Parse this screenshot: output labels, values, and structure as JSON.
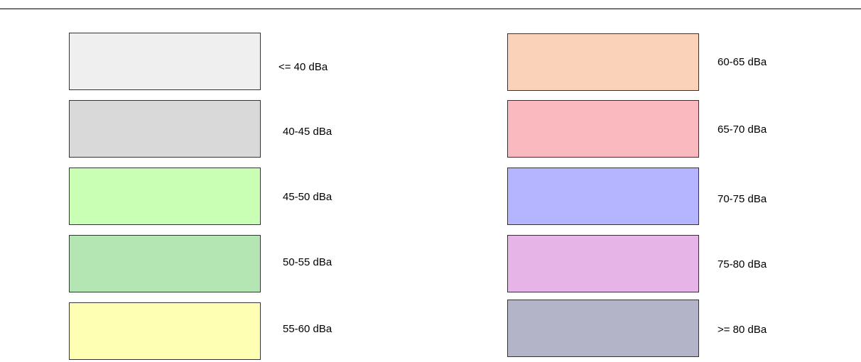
{
  "legend": {
    "items": [
      {
        "label": "<= 40 dBa",
        "color": "#efefef"
      },
      {
        "label": "40-45 dBa",
        "color": "#d9d9d9"
      },
      {
        "label": "45-50 dBa",
        "color": "#c8ffb4"
      },
      {
        "label": "50-55 dBa",
        "color": "#b4e6b4"
      },
      {
        "label": "55-60 dBa",
        "color": "#ffffb4"
      },
      {
        "label": "60-65 dBa",
        "color": "#f9d2b9"
      },
      {
        "label": "65-70 dBa",
        "color": "#f9b9be"
      },
      {
        "label": "70-75 dBa",
        "color": "#b4b4ff"
      },
      {
        "label": "75-80 dBa",
        "color": "#e6b4e6"
      },
      {
        "label": ">= 80 dBa",
        "color": "#b4b4c8"
      }
    ]
  }
}
